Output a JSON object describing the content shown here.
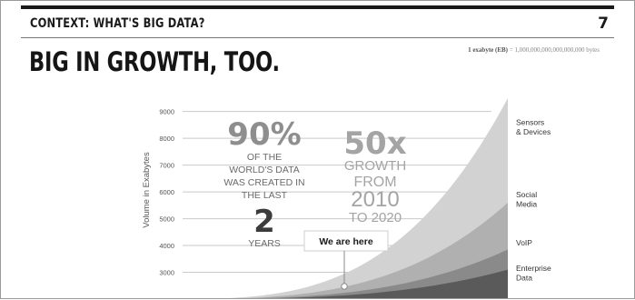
{
  "header": {
    "title": "CONTEXT: WHAT'S BIG DATA?",
    "page_number": "7"
  },
  "slide_title": "BIG IN GROWTH, TOO.",
  "exabyte_note": {
    "term": "1 exabyte (EB)",
    "value": "= 1,000,000,000,000,000,000 bytes"
  },
  "callouts": {
    "pct_big": "90%",
    "pct_lines": [
      "OF THE",
      "WORLD'S DATA",
      "WAS CREATED IN",
      "THE LAST"
    ],
    "years_big": "2",
    "years_label": "YEARS",
    "growth_big": "50x",
    "growth_lines": [
      "GROWTH",
      "FROM"
    ],
    "growth_year1": "2010",
    "growth_year2": "TO 2020",
    "we_are_here": "We are here"
  },
  "chart_data": {
    "type": "area",
    "stacked": true,
    "ylabel": "Volume in Exabytes",
    "y_ticks": [
      3000,
      4000,
      5000,
      6000,
      7000,
      8000,
      9000
    ],
    "ylim": [
      2000,
      9600
    ],
    "xlim": [
      2010,
      2020
    ],
    "grid": true,
    "legend_placement": "right, inline labels",
    "series": [
      {
        "name": "Enterprise Data",
        "color": "#5a5a5a",
        "end_value": 3100
      },
      {
        "name": "VoIP",
        "color": "#8a8a8a",
        "end_value": 3850
      },
      {
        "name": "Social Media",
        "color": "#b0b0b0",
        "end_value": 5600
      },
      {
        "name": "Sensors & Devices",
        "color": "#d2d2d2",
        "end_value": 9500
      }
    ],
    "series_labels": [
      {
        "lines": [
          "Sensors",
          "& Devices"
        ]
      },
      {
        "lines": [
          "Social",
          "Media"
        ]
      },
      {
        "lines": [
          "VoIP"
        ]
      },
      {
        "lines": [
          "Enterprise",
          "Data"
        ]
      }
    ]
  }
}
